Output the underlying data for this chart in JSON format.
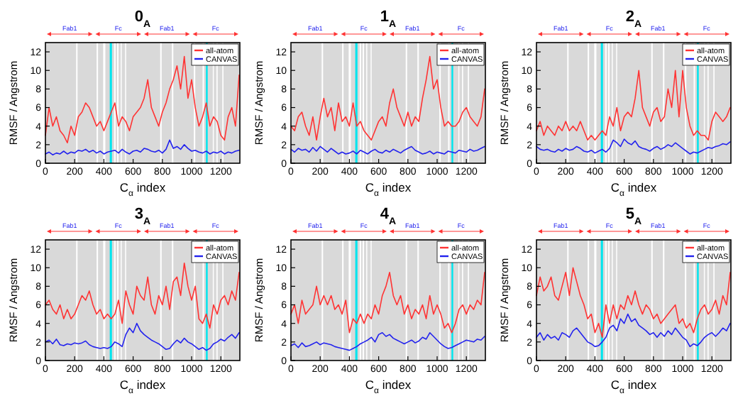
{
  "chart_data": [
    {
      "type": "line",
      "title": "0$_{A}$",
      "xlabel": "C$_{α}$ index",
      "ylabel": "RMSF / Angstrom",
      "xlim": [
        0,
        1330
      ],
      "xticks": [
        0,
        200,
        400,
        600,
        800,
        1000,
        1200
      ],
      "ylim": [
        0,
        13
      ],
      "yticks": [
        0,
        2,
        4,
        6,
        8,
        10,
        12
      ],
      "legend": "top right",
      "grid": false,
      "x": [
        0,
        25,
        50,
        75,
        100,
        125,
        150,
        175,
        200,
        225,
        250,
        275,
        300,
        325,
        350,
        375,
        400,
        425,
        450,
        475,
        500,
        525,
        550,
        575,
        600,
        625,
        650,
        675,
        700,
        725,
        750,
        775,
        800,
        825,
        850,
        875,
        900,
        925,
        950,
        975,
        1000,
        1025,
        1050,
        1075,
        1100,
        1125,
        1150,
        1175,
        1200,
        1225,
        1250,
        1275,
        1300,
        1325
      ],
      "series": [
        {
          "name": "all-atom",
          "color": "#ff3333",
          "values": [
            3,
            6,
            4,
            5,
            3.5,
            3,
            2.2,
            4,
            3,
            5,
            5.5,
            6.5,
            6,
            5,
            4,
            4.5,
            3.5,
            4.5,
            5.5,
            6.5,
            4,
            5,
            4.5,
            3.5,
            5,
            5.5,
            6,
            7,
            9,
            6,
            5,
            4,
            5.5,
            6.5,
            8,
            9,
            10.5,
            8,
            11.5,
            7,
            9,
            6,
            4,
            5,
            6.5,
            4,
            5,
            4.5,
            3,
            2.5,
            5,
            6,
            4,
            9.5
          ]
        },
        {
          "name": "CANVAS",
          "color": "#2222ee",
          "values": [
            1,
            1.2,
            0.9,
            1.1,
            1.0,
            1.3,
            1.0,
            1.2,
            1.1,
            1.4,
            1.3,
            1.5,
            1.2,
            1.4,
            1.1,
            1.3,
            1.0,
            1.2,
            1.3,
            1.4,
            1.1,
            1.5,
            1.2,
            1.0,
            1.3,
            1.4,
            1.2,
            1.6,
            1.5,
            1.3,
            1.2,
            1.4,
            1.1,
            1.5,
            2.5,
            1.6,
            1.8,
            1.5,
            2.0,
            1.6,
            1.3,
            1.4,
            1.2,
            1.1,
            1.3,
            1.0,
            1.2,
            1.1,
            1.3,
            1.0,
            1.2,
            1.1,
            1.3,
            1.4
          ]
        }
      ],
      "annotations": [
        "Fab1",
        "Fc",
        "Fab1",
        "Fc"
      ],
      "bands": [
        {
          "axis": "x",
          "from": 210,
          "to": 220,
          "color": "#ffffff"
        },
        {
          "axis": "x",
          "from": 350,
          "to": 360,
          "color": "#ffffff"
        },
        {
          "axis": "x",
          "from": 395,
          "to": 410,
          "color": "#ffffff"
        },
        {
          "axis": "x",
          "from": 470,
          "to": 480,
          "color": "#ffffff"
        },
        {
          "axis": "x",
          "from": 490,
          "to": 500,
          "color": "#ffffff"
        },
        {
          "axis": "x",
          "from": 515,
          "to": 522,
          "color": "#ffffff"
        },
        {
          "axis": "x",
          "from": 545,
          "to": 552,
          "color": "#ffffff"
        },
        {
          "axis": "x",
          "from": 785,
          "to": 795,
          "color": "#ffffff"
        },
        {
          "axis": "x",
          "from": 865,
          "to": 875,
          "color": "#ffffff"
        },
        {
          "axis": "x",
          "from": 1015,
          "to": 1025,
          "color": "#ffffff"
        },
        {
          "axis": "x",
          "from": 1075,
          "to": 1085,
          "color": "#ffffff"
        },
        {
          "axis": "x",
          "from": 1145,
          "to": 1152,
          "color": "#ffffff"
        },
        {
          "axis": "x",
          "from": 1170,
          "to": 1178,
          "color": "#ffffff"
        },
        {
          "axis": "x",
          "from": 1210,
          "to": 1218,
          "color": "#ffffff"
        },
        {
          "axis": "x",
          "from": 440,
          "to": 455,
          "color": "#00e5ee"
        },
        {
          "axis": "x",
          "from": 1098,
          "to": 1110,
          "color": "#00e5ee"
        }
      ]
    },
    {
      "type": "line",
      "title": "1$_{A}$",
      "xlabel": "C$_{α}$ index",
      "ylabel": "RMSF / Angstrom",
      "xlim": [
        0,
        1330
      ],
      "xticks": [
        0,
        200,
        400,
        600,
        800,
        1000,
        1200
      ],
      "ylim": [
        0,
        13
      ],
      "yticks": [
        0,
        2,
        4,
        6,
        8,
        10,
        12
      ],
      "legend": "top right",
      "grid": false,
      "x": [
        0,
        25,
        50,
        75,
        100,
        125,
        150,
        175,
        200,
        225,
        250,
        275,
        300,
        325,
        350,
        375,
        400,
        425,
        450,
        475,
        500,
        525,
        550,
        575,
        600,
        625,
        650,
        675,
        700,
        725,
        750,
        775,
        800,
        825,
        850,
        875,
        900,
        925,
        950,
        975,
        1000,
        1025,
        1050,
        1075,
        1100,
        1125,
        1150,
        1175,
        1200,
        1225,
        1250,
        1275,
        1300,
        1325
      ],
      "series": [
        {
          "name": "all-atom",
          "color": "#ff3333",
          "values": [
            4,
            3.5,
            5,
            5.5,
            4,
            3,
            5,
            2.5,
            5,
            7,
            5,
            6,
            3.5,
            6.5,
            4.5,
            5,
            4,
            6.5,
            4,
            4.5,
            3.5,
            3,
            2.5,
            3.5,
            4.5,
            5,
            4,
            6.5,
            8,
            6,
            5,
            4,
            5.5,
            4,
            5,
            4.5,
            7,
            9,
            11.5,
            8,
            9,
            6,
            4,
            4.5,
            4,
            4,
            4.5,
            5.5,
            6,
            5,
            4.5,
            4,
            5,
            8
          ]
        },
        {
          "name": "CANVAS",
          "color": "#2222ee",
          "values": [
            1.5,
            1.2,
            1.6,
            1.4,
            1.5,
            1.2,
            1.7,
            1.3,
            1.8,
            1.5,
            1.2,
            1.6,
            1.3,
            1.0,
            1.2,
            1.0,
            1.1,
            1.3,
            1.0,
            1.4,
            1.2,
            1.0,
            1.3,
            1.5,
            1.2,
            1.1,
            1.4,
            1.2,
            1.5,
            1.3,
            1.1,
            1.4,
            1.6,
            1.8,
            1.4,
            1.2,
            1.0,
            1.1,
            1.3,
            1.0,
            1.2,
            1.1,
            1.0,
            1.3,
            1.2,
            1.1,
            1.4,
            1.3,
            1.2,
            1.5,
            1.3,
            1.4,
            1.6,
            1.8
          ]
        }
      ],
      "annotations": [
        "Fab1",
        "Fc",
        "Fab1",
        "Fc"
      ],
      "bands": [
        {
          "axis": "x",
          "from": 210,
          "to": 220,
          "color": "#ffffff"
        },
        {
          "axis": "x",
          "from": 350,
          "to": 360,
          "color": "#ffffff"
        },
        {
          "axis": "x",
          "from": 395,
          "to": 410,
          "color": "#ffffff"
        },
        {
          "axis": "x",
          "from": 470,
          "to": 480,
          "color": "#ffffff"
        },
        {
          "axis": "x",
          "from": 490,
          "to": 500,
          "color": "#ffffff"
        },
        {
          "axis": "x",
          "from": 515,
          "to": 522,
          "color": "#ffffff"
        },
        {
          "axis": "x",
          "from": 545,
          "to": 552,
          "color": "#ffffff"
        },
        {
          "axis": "x",
          "from": 785,
          "to": 795,
          "color": "#ffffff"
        },
        {
          "axis": "x",
          "from": 865,
          "to": 875,
          "color": "#ffffff"
        },
        {
          "axis": "x",
          "from": 1015,
          "to": 1025,
          "color": "#ffffff"
        },
        {
          "axis": "x",
          "from": 1075,
          "to": 1085,
          "color": "#ffffff"
        },
        {
          "axis": "x",
          "from": 1145,
          "to": 1152,
          "color": "#ffffff"
        },
        {
          "axis": "x",
          "from": 1170,
          "to": 1178,
          "color": "#ffffff"
        },
        {
          "axis": "x",
          "from": 1210,
          "to": 1218,
          "color": "#ffffff"
        },
        {
          "axis": "x",
          "from": 440,
          "to": 455,
          "color": "#00e5ee"
        },
        {
          "axis": "x",
          "from": 1098,
          "to": 1110,
          "color": "#00e5ee"
        }
      ]
    },
    {
      "type": "line",
      "title": "2$_{A}$",
      "xlabel": "C$_{α}$ index",
      "ylabel": "RMSF / Angstrom",
      "xlim": [
        0,
        1330
      ],
      "xticks": [
        0,
        200,
        400,
        600,
        800,
        1000,
        1200
      ],
      "ylim": [
        0,
        13
      ],
      "yticks": [
        0,
        2,
        4,
        6,
        8,
        10,
        12
      ],
      "legend": "top right",
      "grid": false,
      "x": [
        0,
        25,
        50,
        75,
        100,
        125,
        150,
        175,
        200,
        225,
        250,
        275,
        300,
        325,
        350,
        375,
        400,
        425,
        450,
        475,
        500,
        525,
        550,
        575,
        600,
        625,
        650,
        675,
        700,
        725,
        750,
        775,
        800,
        825,
        850,
        875,
        900,
        925,
        950,
        975,
        1000,
        1025,
        1050,
        1075,
        1100,
        1125,
        1150,
        1175,
        1200,
        1225,
        1250,
        1275,
        1300,
        1325
      ],
      "series": [
        {
          "name": "all-atom",
          "color": "#ff3333",
          "values": [
            3.5,
            4.5,
            3,
            4,
            3.5,
            3,
            4,
            3.5,
            4.5,
            3.5,
            4,
            3.5,
            4.5,
            3.5,
            2.5,
            3,
            2.5,
            3,
            3.5,
            3,
            5,
            4,
            6,
            3.5,
            5,
            5.5,
            5,
            7,
            10,
            6,
            5,
            4,
            5.5,
            6,
            4.5,
            5,
            8,
            6,
            10,
            5,
            10,
            6,
            4,
            3,
            3.5,
            3,
            3,
            2.5,
            4.5,
            5.5,
            5,
            4.5,
            5,
            6
          ]
        },
        {
          "name": "CANVAS",
          "color": "#2222ee",
          "values": [
            1.8,
            1.5,
            1.4,
            1.5,
            1.3,
            1.2,
            1.5,
            1.3,
            1.6,
            1.4,
            1.5,
            1.8,
            1.6,
            1.3,
            1.2,
            1.4,
            1.1,
            1.3,
            1.5,
            1.2,
            1.6,
            2.5,
            2.2,
            1.8,
            2.6,
            2.2,
            2.0,
            2.4,
            1.8,
            1.6,
            1.5,
            1.3,
            1.6,
            1.8,
            1.5,
            1.7,
            2.0,
            1.8,
            2.2,
            1.9,
            1.6,
            1.3,
            1.0,
            1.2,
            1.1,
            1.3,
            1.5,
            1.7,
            1.6,
            1.8,
            1.9,
            2.1,
            2.0,
            2.3
          ]
        }
      ],
      "annotations": [
        "Fab1",
        "Fc",
        "Fab1",
        "Fc"
      ],
      "bands": [
        {
          "axis": "x",
          "from": 210,
          "to": 220,
          "color": "#ffffff"
        },
        {
          "axis": "x",
          "from": 350,
          "to": 360,
          "color": "#ffffff"
        },
        {
          "axis": "x",
          "from": 395,
          "to": 410,
          "color": "#ffffff"
        },
        {
          "axis": "x",
          "from": 470,
          "to": 480,
          "color": "#ffffff"
        },
        {
          "axis": "x",
          "from": 490,
          "to": 500,
          "color": "#ffffff"
        },
        {
          "axis": "x",
          "from": 515,
          "to": 522,
          "color": "#ffffff"
        },
        {
          "axis": "x",
          "from": 545,
          "to": 552,
          "color": "#ffffff"
        },
        {
          "axis": "x",
          "from": 785,
          "to": 795,
          "color": "#ffffff"
        },
        {
          "axis": "x",
          "from": 865,
          "to": 875,
          "color": "#ffffff"
        },
        {
          "axis": "x",
          "from": 1015,
          "to": 1025,
          "color": "#ffffff"
        },
        {
          "axis": "x",
          "from": 1075,
          "to": 1085,
          "color": "#ffffff"
        },
        {
          "axis": "x",
          "from": 1145,
          "to": 1152,
          "color": "#ffffff"
        },
        {
          "axis": "x",
          "from": 1170,
          "to": 1178,
          "color": "#ffffff"
        },
        {
          "axis": "x",
          "from": 1210,
          "to": 1218,
          "color": "#ffffff"
        },
        {
          "axis": "x",
          "from": 440,
          "to": 455,
          "color": "#00e5ee"
        },
        {
          "axis": "x",
          "from": 1098,
          "to": 1110,
          "color": "#00e5ee"
        }
      ]
    },
    {
      "type": "line",
      "title": "3$_{A}$",
      "xlabel": "C$_{α}$ index",
      "ylabel": "RMSF / Angstrom",
      "xlim": [
        0,
        1330
      ],
      "xticks": [
        0,
        200,
        400,
        600,
        800,
        1000,
        1200
      ],
      "ylim": [
        0,
        13
      ],
      "yticks": [
        0,
        2,
        4,
        6,
        8,
        10,
        12
      ],
      "legend": "top right",
      "grid": false,
      "x": [
        0,
        25,
        50,
        75,
        100,
        125,
        150,
        175,
        200,
        225,
        250,
        275,
        300,
        325,
        350,
        375,
        400,
        425,
        450,
        475,
        500,
        525,
        550,
        575,
        600,
        625,
        650,
        675,
        700,
        725,
        750,
        775,
        800,
        825,
        850,
        875,
        900,
        925,
        950,
        975,
        1000,
        1025,
        1050,
        1075,
        1100,
        1125,
        1150,
        1175,
        1200,
        1225,
        1250,
        1275,
        1300,
        1325
      ],
      "series": [
        {
          "name": "all-atom",
          "color": "#ff3333",
          "values": [
            6,
            6.5,
            5.5,
            5,
            6,
            4.5,
            5.5,
            4.5,
            5,
            6,
            7,
            6.5,
            7.5,
            6,
            5,
            5.5,
            4.5,
            5,
            4.5,
            5,
            6.5,
            4,
            7.5,
            6,
            5,
            8,
            7,
            6.5,
            9,
            6,
            5,
            7,
            6,
            8,
            5.5,
            8.5,
            9,
            7,
            10.5,
            8,
            6.5,
            8,
            4.5,
            4,
            5,
            3.5,
            6,
            5,
            6.5,
            7,
            6,
            7.5,
            6.5,
            9.5
          ]
        },
        {
          "name": "CANVAS",
          "color": "#2222ee",
          "values": [
            2,
            2.2,
            1.8,
            2.3,
            1.7,
            1.6,
            1.8,
            1.7,
            1.9,
            1.8,
            1.9,
            2.1,
            1.7,
            1.5,
            1.4,
            1.3,
            1.4,
            1.3,
            1.5,
            2.0,
            1.8,
            1.5,
            2.8,
            3.5,
            3,
            4,
            3.2,
            2.8,
            2.5,
            2.2,
            2,
            1.8,
            1.5,
            1.2,
            1.3,
            1.8,
            2.2,
            1.9,
            2.4,
            2.0,
            1.8,
            1.5,
            1.2,
            1.4,
            1.1,
            1.3,
            1.8,
            2.0,
            2.3,
            2.1,
            2.5,
            2.8,
            2.4,
            3.0
          ]
        }
      ],
      "annotations": [
        "Fab1",
        "Fc",
        "Fab1",
        "Fc"
      ],
      "bands": [
        {
          "axis": "x",
          "from": 210,
          "to": 220,
          "color": "#ffffff"
        },
        {
          "axis": "x",
          "from": 350,
          "to": 360,
          "color": "#ffffff"
        },
        {
          "axis": "x",
          "from": 395,
          "to": 410,
          "color": "#ffffff"
        },
        {
          "axis": "x",
          "from": 470,
          "to": 480,
          "color": "#ffffff"
        },
        {
          "axis": "x",
          "from": 490,
          "to": 500,
          "color": "#ffffff"
        },
        {
          "axis": "x",
          "from": 515,
          "to": 522,
          "color": "#ffffff"
        },
        {
          "axis": "x",
          "from": 545,
          "to": 552,
          "color": "#ffffff"
        },
        {
          "axis": "x",
          "from": 785,
          "to": 795,
          "color": "#ffffff"
        },
        {
          "axis": "x",
          "from": 865,
          "to": 875,
          "color": "#ffffff"
        },
        {
          "axis": "x",
          "from": 1015,
          "to": 1025,
          "color": "#ffffff"
        },
        {
          "axis": "x",
          "from": 1075,
          "to": 1085,
          "color": "#ffffff"
        },
        {
          "axis": "x",
          "from": 1145,
          "to": 1152,
          "color": "#ffffff"
        },
        {
          "axis": "x",
          "from": 1170,
          "to": 1178,
          "color": "#ffffff"
        },
        {
          "axis": "x",
          "from": 1210,
          "to": 1218,
          "color": "#ffffff"
        },
        {
          "axis": "x",
          "from": 440,
          "to": 455,
          "color": "#00e5ee"
        },
        {
          "axis": "x",
          "from": 1098,
          "to": 1110,
          "color": "#00e5ee"
        }
      ]
    },
    {
      "type": "line",
      "title": "4$_{A}$",
      "xlabel": "C$_{α}$ index",
      "ylabel": "RMSF / Angstrom",
      "xlim": [
        0,
        1330
      ],
      "xticks": [
        0,
        200,
        400,
        600,
        800,
        1000,
        1200
      ],
      "ylim": [
        0,
        13
      ],
      "yticks": [
        0,
        2,
        4,
        6,
        8,
        10,
        12
      ],
      "legend": "top right",
      "grid": false,
      "x": [
        0,
        25,
        50,
        75,
        100,
        125,
        150,
        175,
        200,
        225,
        250,
        275,
        300,
        325,
        350,
        375,
        400,
        425,
        450,
        475,
        500,
        525,
        550,
        575,
        600,
        625,
        650,
        675,
        700,
        725,
        750,
        775,
        800,
        825,
        850,
        875,
        900,
        925,
        950,
        975,
        1000,
        1025,
        1050,
        1075,
        1100,
        1125,
        1150,
        1175,
        1200,
        1225,
        1250,
        1275,
        1300,
        1325
      ],
      "series": [
        {
          "name": "all-atom",
          "color": "#ff3333",
          "values": [
            5,
            6,
            4,
            6.5,
            5,
            5.5,
            6,
            8,
            6,
            7,
            6,
            7,
            5.5,
            6,
            5,
            6.5,
            3,
            4.5,
            4,
            5,
            4,
            5,
            4.5,
            6,
            5,
            7,
            8,
            9.5,
            7,
            6,
            7,
            5,
            6,
            4.5,
            5.5,
            5,
            6,
            4.5,
            7,
            5,
            6,
            5,
            3.5,
            4,
            3,
            4,
            5.5,
            6,
            5,
            6,
            5.5,
            6.5,
            6,
            9.5
          ]
        },
        {
          "name": "CANVAS",
          "color": "#2222ee",
          "values": [
            1.6,
            1.8,
            1.4,
            1.9,
            1.5,
            1.6,
            1.8,
            2.0,
            1.7,
            1.9,
            1.8,
            1.7,
            1.5,
            1.4,
            1.3,
            1.2,
            1.1,
            1.3,
            1.5,
            1.8,
            2.0,
            2.2,
            2.5,
            2.0,
            2.8,
            3.0,
            2.6,
            2.8,
            2.4,
            2.2,
            2.0,
            1.8,
            2.0,
            2.2,
            1.9,
            2.1,
            2.5,
            2.3,
            3.0,
            2.6,
            2.2,
            1.8,
            1.5,
            1.3,
            1.4,
            1.6,
            1.8,
            2.0,
            2.2,
            2.1,
            2.0,
            2.3,
            2.2,
            2.6
          ]
        }
      ],
      "annotations": [
        "Fab1",
        "Fc",
        "Fab1",
        "Fc"
      ],
      "bands": [
        {
          "axis": "x",
          "from": 210,
          "to": 220,
          "color": "#ffffff"
        },
        {
          "axis": "x",
          "from": 350,
          "to": 360,
          "color": "#ffffff"
        },
        {
          "axis": "x",
          "from": 395,
          "to": 410,
          "color": "#ffffff"
        },
        {
          "axis": "x",
          "from": 470,
          "to": 480,
          "color": "#ffffff"
        },
        {
          "axis": "x",
          "from": 490,
          "to": 500,
          "color": "#ffffff"
        },
        {
          "axis": "x",
          "from": 515,
          "to": 522,
          "color": "#ffffff"
        },
        {
          "axis": "x",
          "from": 545,
          "to": 552,
          "color": "#ffffff"
        },
        {
          "axis": "x",
          "from": 785,
          "to": 795,
          "color": "#ffffff"
        },
        {
          "axis": "x",
          "from": 865,
          "to": 875,
          "color": "#ffffff"
        },
        {
          "axis": "x",
          "from": 1015,
          "to": 1025,
          "color": "#ffffff"
        },
        {
          "axis": "x",
          "from": 1075,
          "to": 1085,
          "color": "#ffffff"
        },
        {
          "axis": "x",
          "from": 1145,
          "to": 1152,
          "color": "#ffffff"
        },
        {
          "axis": "x",
          "from": 1170,
          "to": 1178,
          "color": "#ffffff"
        },
        {
          "axis": "x",
          "from": 1210,
          "to": 1218,
          "color": "#ffffff"
        },
        {
          "axis": "x",
          "from": 440,
          "to": 455,
          "color": "#00e5ee"
        },
        {
          "axis": "x",
          "from": 1098,
          "to": 1110,
          "color": "#00e5ee"
        }
      ]
    },
    {
      "type": "line",
      "title": "5$_{A}$",
      "xlabel": "C$_{α}$ index",
      "ylabel": "RMSF / Angstrom",
      "xlim": [
        0,
        1330
      ],
      "xticks": [
        0,
        200,
        400,
        600,
        800,
        1000,
        1200
      ],
      "ylim": [
        0,
        13
      ],
      "yticks": [
        0,
        2,
        4,
        6,
        8,
        10,
        12
      ],
      "legend": "top right",
      "grid": false,
      "x": [
        0,
        25,
        50,
        75,
        100,
        125,
        150,
        175,
        200,
        225,
        250,
        275,
        300,
        325,
        350,
        375,
        400,
        425,
        450,
        475,
        500,
        525,
        550,
        575,
        600,
        625,
        650,
        675,
        700,
        725,
        750,
        775,
        800,
        825,
        850,
        875,
        900,
        925,
        950,
        975,
        1000,
        1025,
        1050,
        1075,
        1100,
        1125,
        1150,
        1175,
        1200,
        1225,
        1250,
        1275,
        1300,
        1325
      ],
      "series": [
        {
          "name": "all-atom",
          "color": "#ff3333",
          "values": [
            7,
            9,
            7.5,
            8,
            9,
            7,
            6.5,
            8,
            9.5,
            7,
            10,
            8.5,
            7,
            6,
            4.5,
            5,
            3,
            4,
            2.5,
            6,
            4,
            6,
            4.5,
            6,
            5.5,
            7,
            6,
            7.5,
            6,
            5,
            6,
            5.5,
            4.5,
            5,
            4,
            4.5,
            5,
            5.5,
            6,
            4,
            4.5,
            3.5,
            4,
            3,
            4.5,
            5.5,
            6,
            5,
            5.5,
            6.5,
            5,
            7,
            6,
            9.5
          ]
        },
        {
          "name": "CANVAS",
          "color": "#2222ee",
          "values": [
            2.5,
            3,
            2.2,
            2.8,
            2.4,
            2.6,
            2.2,
            3,
            2.8,
            2.5,
            3.2,
            3.5,
            3.0,
            2.5,
            2.0,
            1.8,
            1.5,
            1.6,
            2.0,
            2.5,
            3.5,
            3.8,
            3.2,
            4.5,
            4,
            5,
            4.2,
            4.5,
            3.8,
            3.5,
            3.2,
            2.8,
            3.0,
            2.5,
            3.0,
            2.6,
            3.2,
            2.8,
            3.5,
            3.0,
            2.5,
            2.2,
            1.5,
            1.8,
            1.6,
            2.0,
            2.5,
            2.8,
            3.0,
            2.6,
            3.0,
            3.5,
            3.2,
            4.0
          ]
        }
      ],
      "annotations": [
        "Fab1",
        "Fc",
        "Fab1",
        "Fc"
      ],
      "bands": [
        {
          "axis": "x",
          "from": 210,
          "to": 220,
          "color": "#ffffff"
        },
        {
          "axis": "x",
          "from": 350,
          "to": 360,
          "color": "#ffffff"
        },
        {
          "axis": "x",
          "from": 395,
          "to": 410,
          "color": "#ffffff"
        },
        {
          "axis": "x",
          "from": 470,
          "to": 480,
          "color": "#ffffff"
        },
        {
          "axis": "x",
          "from": 490,
          "to": 500,
          "color": "#ffffff"
        },
        {
          "axis": "x",
          "from": 515,
          "to": 522,
          "color": "#ffffff"
        },
        {
          "axis": "x",
          "from": 545,
          "to": 552,
          "color": "#ffffff"
        },
        {
          "axis": "x",
          "from": 785,
          "to": 795,
          "color": "#ffffff"
        },
        {
          "axis": "x",
          "from": 865,
          "to": 875,
          "color": "#ffffff"
        },
        {
          "axis": "x",
          "from": 1015,
          "to": 1025,
          "color": "#ffffff"
        },
        {
          "axis": "x",
          "from": 1075,
          "to": 1085,
          "color": "#ffffff"
        },
        {
          "axis": "x",
          "from": 1145,
          "to": 1152,
          "color": "#ffffff"
        },
        {
          "axis": "x",
          "from": 1170,
          "to": 1178,
          "color": "#ffffff"
        },
        {
          "axis": "x",
          "from": 1210,
          "to": 1218,
          "color": "#ffffff"
        },
        {
          "axis": "x",
          "from": 440,
          "to": 455,
          "color": "#00e5ee"
        },
        {
          "axis": "x",
          "from": 1098,
          "to": 1110,
          "color": "#00e5ee"
        }
      ]
    }
  ]
}
